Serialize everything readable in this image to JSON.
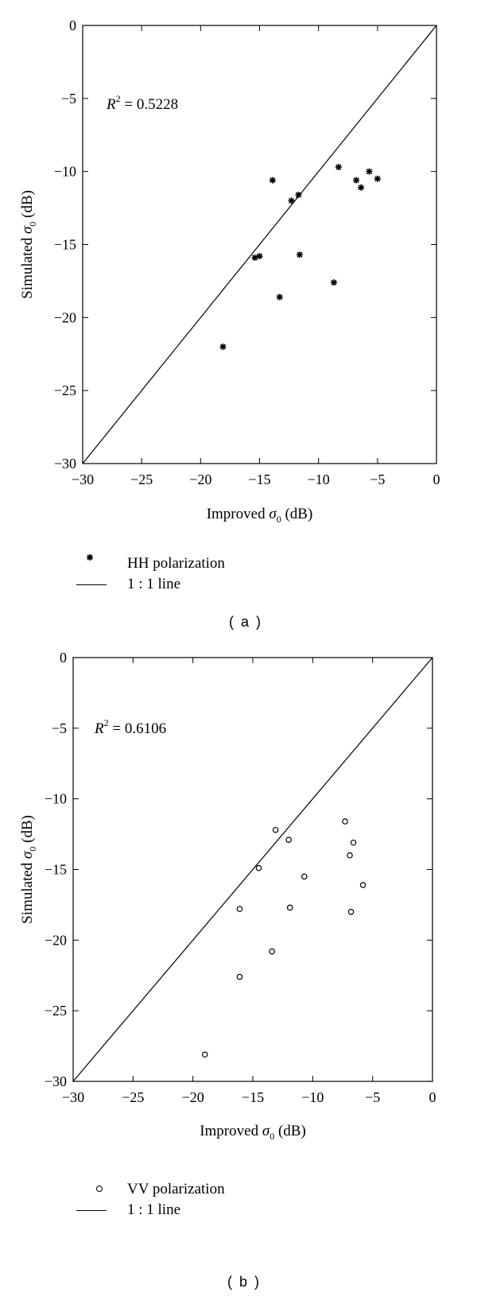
{
  "chart_data": [
    {
      "type": "scatter",
      "xlabel_main": "Improved",
      "xlabel_symbol": "σ",
      "xlabel_sub": "0",
      "xlabel_unit": "(dB)",
      "ylabel_main": "Simulated",
      "ylabel_symbol": "σ",
      "ylabel_sub": "0",
      "ylabel_unit": "(dB)",
      "xlim": [
        -30,
        0
      ],
      "ylim": [
        -30,
        0
      ],
      "xticks": [
        "−30",
        "−25",
        "−20",
        "−15",
        "−10",
        "−5",
        "0"
      ],
      "yticks": [
        "0",
        "−5",
        "−10",
        "−15",
        "−20",
        "−25",
        "−30"
      ],
      "annotation_symbol": "R",
      "annotation_exp": "2",
      "annotation_value": "= 0.5228",
      "marker": "star",
      "series": [
        {
          "name": "HH polarization",
          "points": [
            [
              -18.1,
              -22.0
            ],
            [
              -15.4,
              -15.9
            ],
            [
              -15.0,
              -15.8
            ],
            [
              -13.9,
              -10.6
            ],
            [
              -13.3,
              -18.6
            ],
            [
              -12.3,
              -12.0
            ],
            [
              -11.7,
              -11.6
            ],
            [
              -11.6,
              -15.7
            ],
            [
              -8.7,
              -17.6
            ],
            [
              -8.3,
              -9.7
            ],
            [
              -6.8,
              -10.6
            ],
            [
              -6.4,
              -11.1
            ],
            [
              -5.7,
              -10.0
            ],
            [
              -5.0,
              -10.5
            ]
          ]
        },
        {
          "name": "1 : 1 line",
          "points": [
            [
              -30,
              -30
            ],
            [
              0,
              0
            ]
          ]
        }
      ],
      "caption": "( a )"
    },
    {
      "type": "scatter",
      "xlabel_main": "Improved",
      "xlabel_symbol": "σ",
      "xlabel_sub": "0",
      "xlabel_unit": "(dB)",
      "ylabel_main": "Simulated",
      "ylabel_symbol": "σ",
      "ylabel_sub": "0",
      "ylabel_unit": "(dB)",
      "xlim": [
        -30,
        0
      ],
      "ylim": [
        -30,
        0
      ],
      "xticks": [
        "−30",
        "−25",
        "−20",
        "−15",
        "−10",
        "−5",
        "0"
      ],
      "yticks": [
        "0",
        "−5",
        "−10",
        "−15",
        "−20",
        "−25",
        "−30"
      ],
      "annotation_symbol": "R",
      "annotation_exp": "2",
      "annotation_value": "= 0.6106",
      "marker": "circle",
      "series": [
        {
          "name": "VV polarization",
          "points": [
            [
              -19.0,
              -28.1
            ],
            [
              -16.1,
              -17.8
            ],
            [
              -16.1,
              -22.6
            ],
            [
              -14.5,
              -14.9
            ],
            [
              -13.4,
              -20.8
            ],
            [
              -13.1,
              -12.2
            ],
            [
              -12.0,
              -12.9
            ],
            [
              -11.9,
              -17.7
            ],
            [
              -10.7,
              -15.5
            ],
            [
              -7.3,
              -11.6
            ],
            [
              -6.9,
              -14.0
            ],
            [
              -6.6,
              -13.1
            ],
            [
              -6.8,
              -18.0
            ],
            [
              -5.8,
              -16.1
            ]
          ]
        },
        {
          "name": "1 : 1 line",
          "points": [
            [
              -30,
              -30
            ],
            [
              0,
              0
            ]
          ]
        }
      ],
      "caption": "( b )"
    }
  ]
}
